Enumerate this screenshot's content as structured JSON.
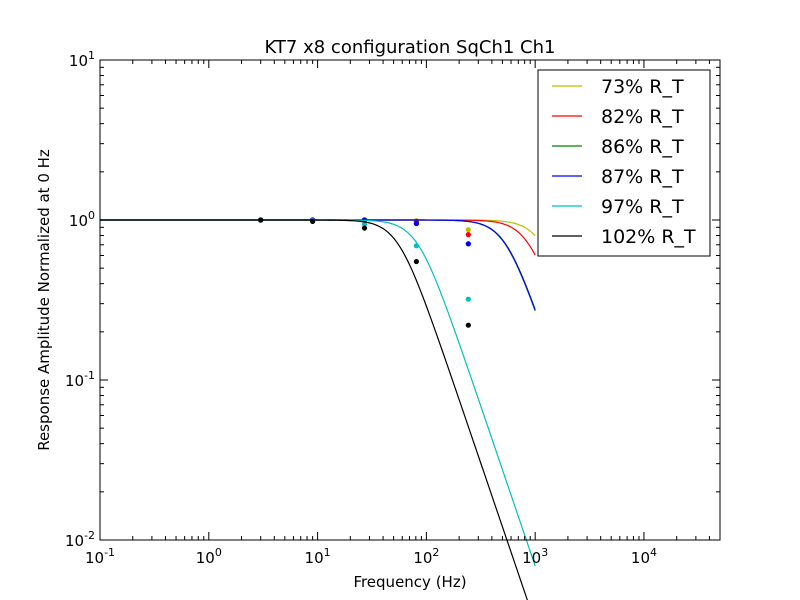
{
  "chart_data": {
    "type": "line",
    "title": "KT7 x8 configuration SqCh1 Ch1",
    "xlabel": "Frequency (Hz)",
    "ylabel": "Response Amplitude Normalized at 0 Hz",
    "xscale": "log",
    "yscale": "log",
    "xlim": [
      0.1,
      50000
    ],
    "ylim": [
      0.01,
      10
    ],
    "x_ticks": [
      {
        "value": 0.1,
        "base": "10",
        "exp": "-1"
      },
      {
        "value": 1,
        "base": "10",
        "exp": "0"
      },
      {
        "value": 10,
        "base": "10",
        "exp": "1"
      },
      {
        "value": 100,
        "base": "10",
        "exp": "2"
      },
      {
        "value": 1000,
        "base": "10",
        "exp": "3"
      },
      {
        "value": 10000,
        "base": "10",
        "exp": "4"
      }
    ],
    "y_ticks": [
      {
        "value": 0.01,
        "base": "10",
        "exp": "-2"
      },
      {
        "value": 0.1,
        "base": "10",
        "exp": "-1"
      },
      {
        "value": 1,
        "base": "10",
        "exp": "0"
      },
      {
        "value": 10,
        "base": "10",
        "exp": "1"
      }
    ],
    "legend_position": "top-right",
    "series": [
      {
        "name": "73% R_T",
        "color": "#bfbf00",
        "fc": 1150,
        "points": [
          [
            3,
            1.0
          ],
          [
            9,
            1.0
          ],
          [
            27,
            1.0
          ],
          [
            81,
            0.99
          ],
          [
            243,
            0.87
          ]
        ]
      },
      {
        "name": "82% R_T",
        "color": "#ff0000",
        "fc": 870,
        "points": [
          [
            3,
            1.0
          ],
          [
            9,
            1.0
          ],
          [
            27,
            1.0
          ],
          [
            81,
            0.98
          ],
          [
            243,
            0.81
          ]
        ]
      },
      {
        "name": "86% R_T",
        "color": "#008000",
        "fc": 530,
        "points": [
          [
            3,
            1.0
          ],
          [
            9,
            1.0
          ],
          [
            27,
            1.0
          ],
          [
            81,
            0.95
          ],
          [
            243,
            0.71
          ]
        ]
      },
      {
        "name": "87% R_T",
        "color": "#0000ff",
        "fc": 535,
        "points": [
          [
            3,
            1.0
          ],
          [
            9,
            1.0
          ],
          [
            27,
            1.0
          ],
          [
            81,
            0.95
          ],
          [
            243,
            0.71
          ]
        ]
      },
      {
        "name": "97% R_T",
        "color": "#00bfbf",
        "fc": 83,
        "points": [
          [
            3,
            1.0
          ],
          [
            9,
            0.99
          ],
          [
            27,
            0.94
          ],
          [
            81,
            0.69
          ],
          [
            243,
            0.32
          ]
        ]
      },
      {
        "name": "102% R_T",
        "color": "#000000",
        "fc": 55,
        "points": [
          [
            3,
            1.0
          ],
          [
            9,
            0.98
          ],
          [
            27,
            0.89
          ],
          [
            81,
            0.55
          ],
          [
            243,
            0.22
          ]
        ]
      }
    ]
  }
}
